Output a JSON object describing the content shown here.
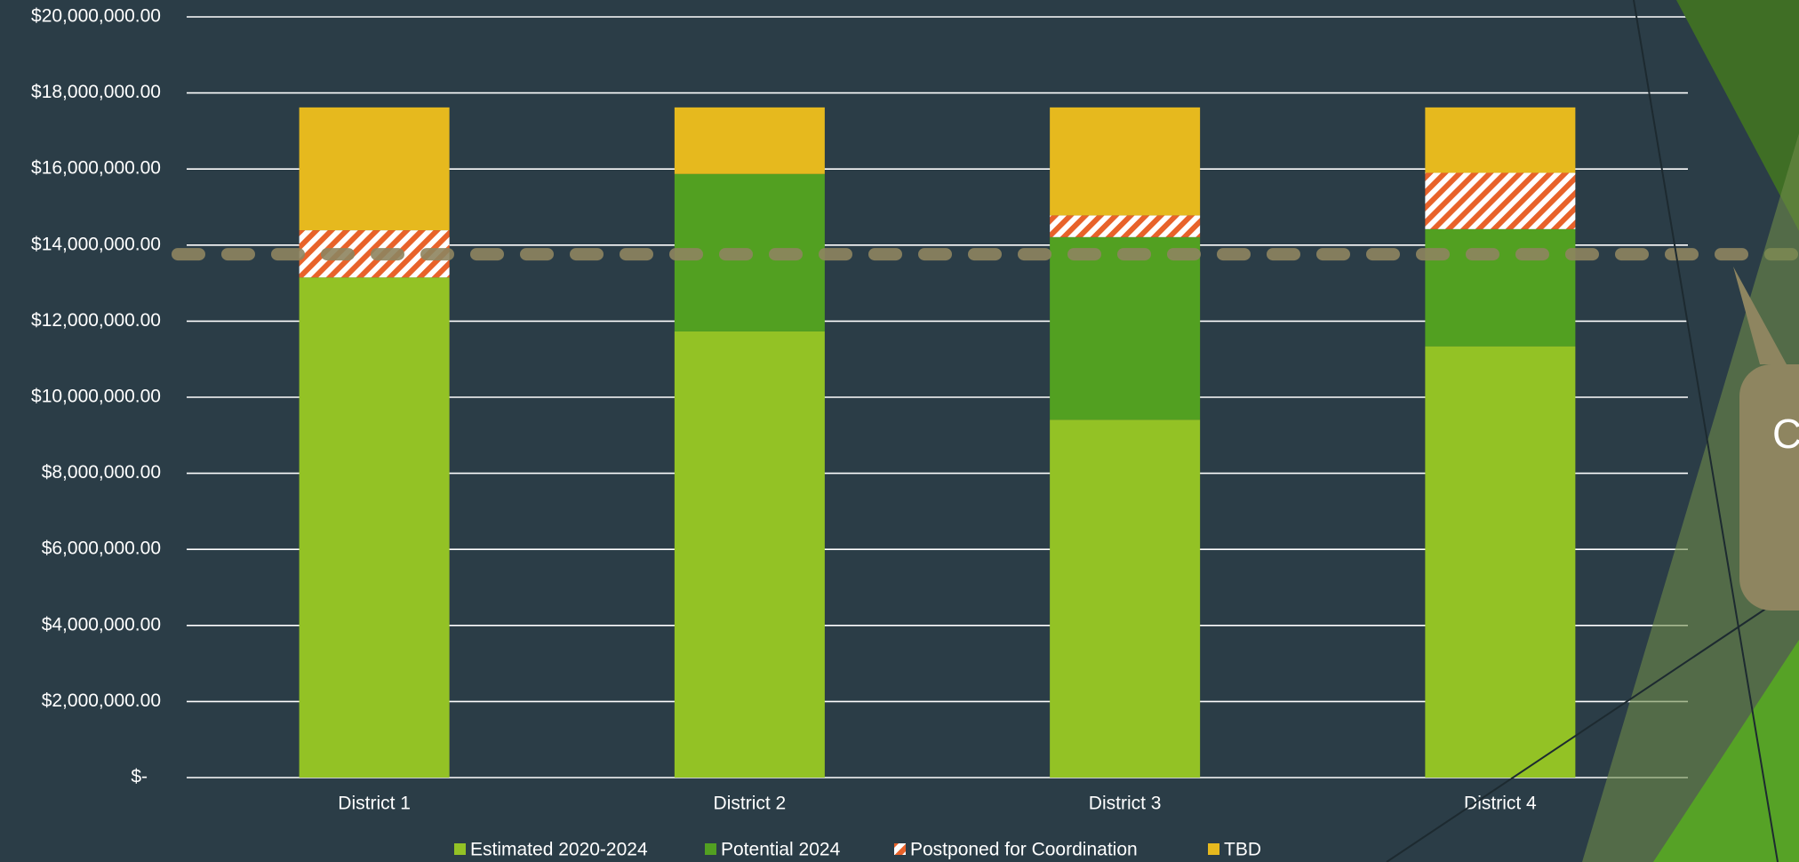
{
  "chart_data": {
    "type": "stacked_bar",
    "categories": [
      "District 1",
      "District 2",
      "District 3",
      "District 4"
    ],
    "series": [
      {
        "name": "Estimated 2020-2024",
        "color": "#93c225",
        "values": [
          13150000,
          11730000,
          9410000,
          11340000
        ]
      },
      {
        "name": "Potential 2024",
        "color": "#52a021",
        "values": [
          0,
          4140000,
          4800000,
          3080000
        ]
      },
      {
        "name": "Postponed for Coordination",
        "color": "#e8622a",
        "hatch": true,
        "values": [
          1240000,
          0,
          570000,
          1480000
        ]
      },
      {
        "name": "TBD",
        "color": "#e6b91e",
        "values": [
          3230000,
          1750000,
          2840000,
          1720000
        ]
      }
    ],
    "reference_line": 13760000,
    "reference_color": "#8e8560",
    "ylim": [
      0,
      20000000
    ],
    "yticks": [
      {
        "value": 0,
        "label": "$-"
      },
      {
        "value": 2000000,
        "label": "$2,000,000.00"
      },
      {
        "value": 4000000,
        "label": "$4,000,000.00"
      },
      {
        "value": 6000000,
        "label": "$6,000,000.00"
      },
      {
        "value": 8000000,
        "label": "$8,000,000.00"
      },
      {
        "value": 10000000,
        "label": "$10,000,000.00"
      },
      {
        "value": 12000000,
        "label": "$12,000,000.00"
      },
      {
        "value": 14000000,
        "label": "$14,000,000.00"
      },
      {
        "value": 16000000,
        "label": "$16,000,000.00"
      },
      {
        "value": 18000000,
        "label": "$18,000,000.00"
      },
      {
        "value": 20000000,
        "label": "$20,000,000.00"
      }
    ],
    "grid": true,
    "legend": "bottom",
    "callout": "C"
  }
}
